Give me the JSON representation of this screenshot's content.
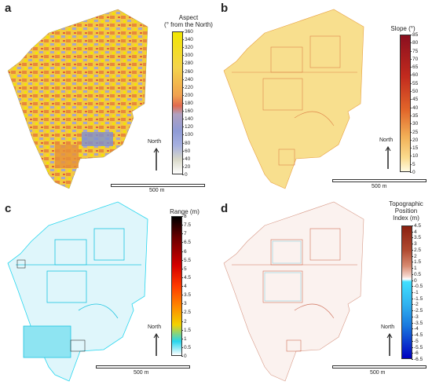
{
  "panels": {
    "a": {
      "letter": "a",
      "legend_title_line1": "Aspect",
      "legend_title_line2": "(° from the North)",
      "ticks": [
        "360",
        "340",
        "320",
        "300",
        "280",
        "260",
        "240",
        "220",
        "200",
        "180",
        "160",
        "140",
        "120",
        "100",
        "80",
        "60",
        "40",
        "20",
        "0"
      ],
      "north_label": "North",
      "scale_label": "500 m",
      "colors": [
        "#f2e600",
        "#f6c64a",
        "#e38b57",
        "#a8a0c8",
        "#7a8fd6",
        "#e69a3a"
      ]
    },
    "b": {
      "letter": "b",
      "legend_title_line1": "Slope (°)",
      "ticks": [
        "85",
        "80",
        "75",
        "70",
        "65",
        "60",
        "55",
        "50",
        "45",
        "40",
        "35",
        "30",
        "25",
        "20",
        "15",
        "10",
        "5",
        "0"
      ],
      "north_label": "North",
      "scale_label": "500 m",
      "colors": [
        "#fff6c8",
        "#f7d47a",
        "#e8893a",
        "#c23a20",
        "#8a0f1f"
      ]
    },
    "c": {
      "letter": "c",
      "legend_title_line1": "Range (m)",
      "ticks": [
        "8",
        "7.5",
        "7",
        "6.5",
        "6",
        "5.5",
        "5",
        "4.5",
        "4",
        "3.5",
        "3",
        "2.5",
        "2",
        "1.5",
        "1",
        "0.5",
        "0"
      ],
      "north_label": "North",
      "scale_label": "500 m",
      "colors": [
        "#ffffff",
        "#27d6ee",
        "#f2d200",
        "#ff6a00",
        "#d40000",
        "#000000"
      ]
    },
    "d": {
      "letter": "d",
      "legend_title_line1": "Topographic",
      "legend_title_line2": "Position",
      "legend_title_line3": "Index (m)",
      "ticks": [
        "4.5",
        "4",
        "3.5",
        "3",
        "2.5",
        "2",
        "1.5",
        "1",
        "0.5",
        "0",
        "-0.5",
        "-1",
        "-1.5",
        "-2",
        "-2.5",
        "-3",
        "-3.5",
        "-4",
        "-4.5",
        "-5",
        "-5.5",
        "-6",
        "-6.5"
      ],
      "north_label": "North",
      "scale_label": "500 m",
      "colors": [
        "#8a2010",
        "#c75a40",
        "#f0b8a8",
        "#ffffff",
        "#40e0ff",
        "#1a7adf",
        "#0000c0"
      ]
    }
  }
}
